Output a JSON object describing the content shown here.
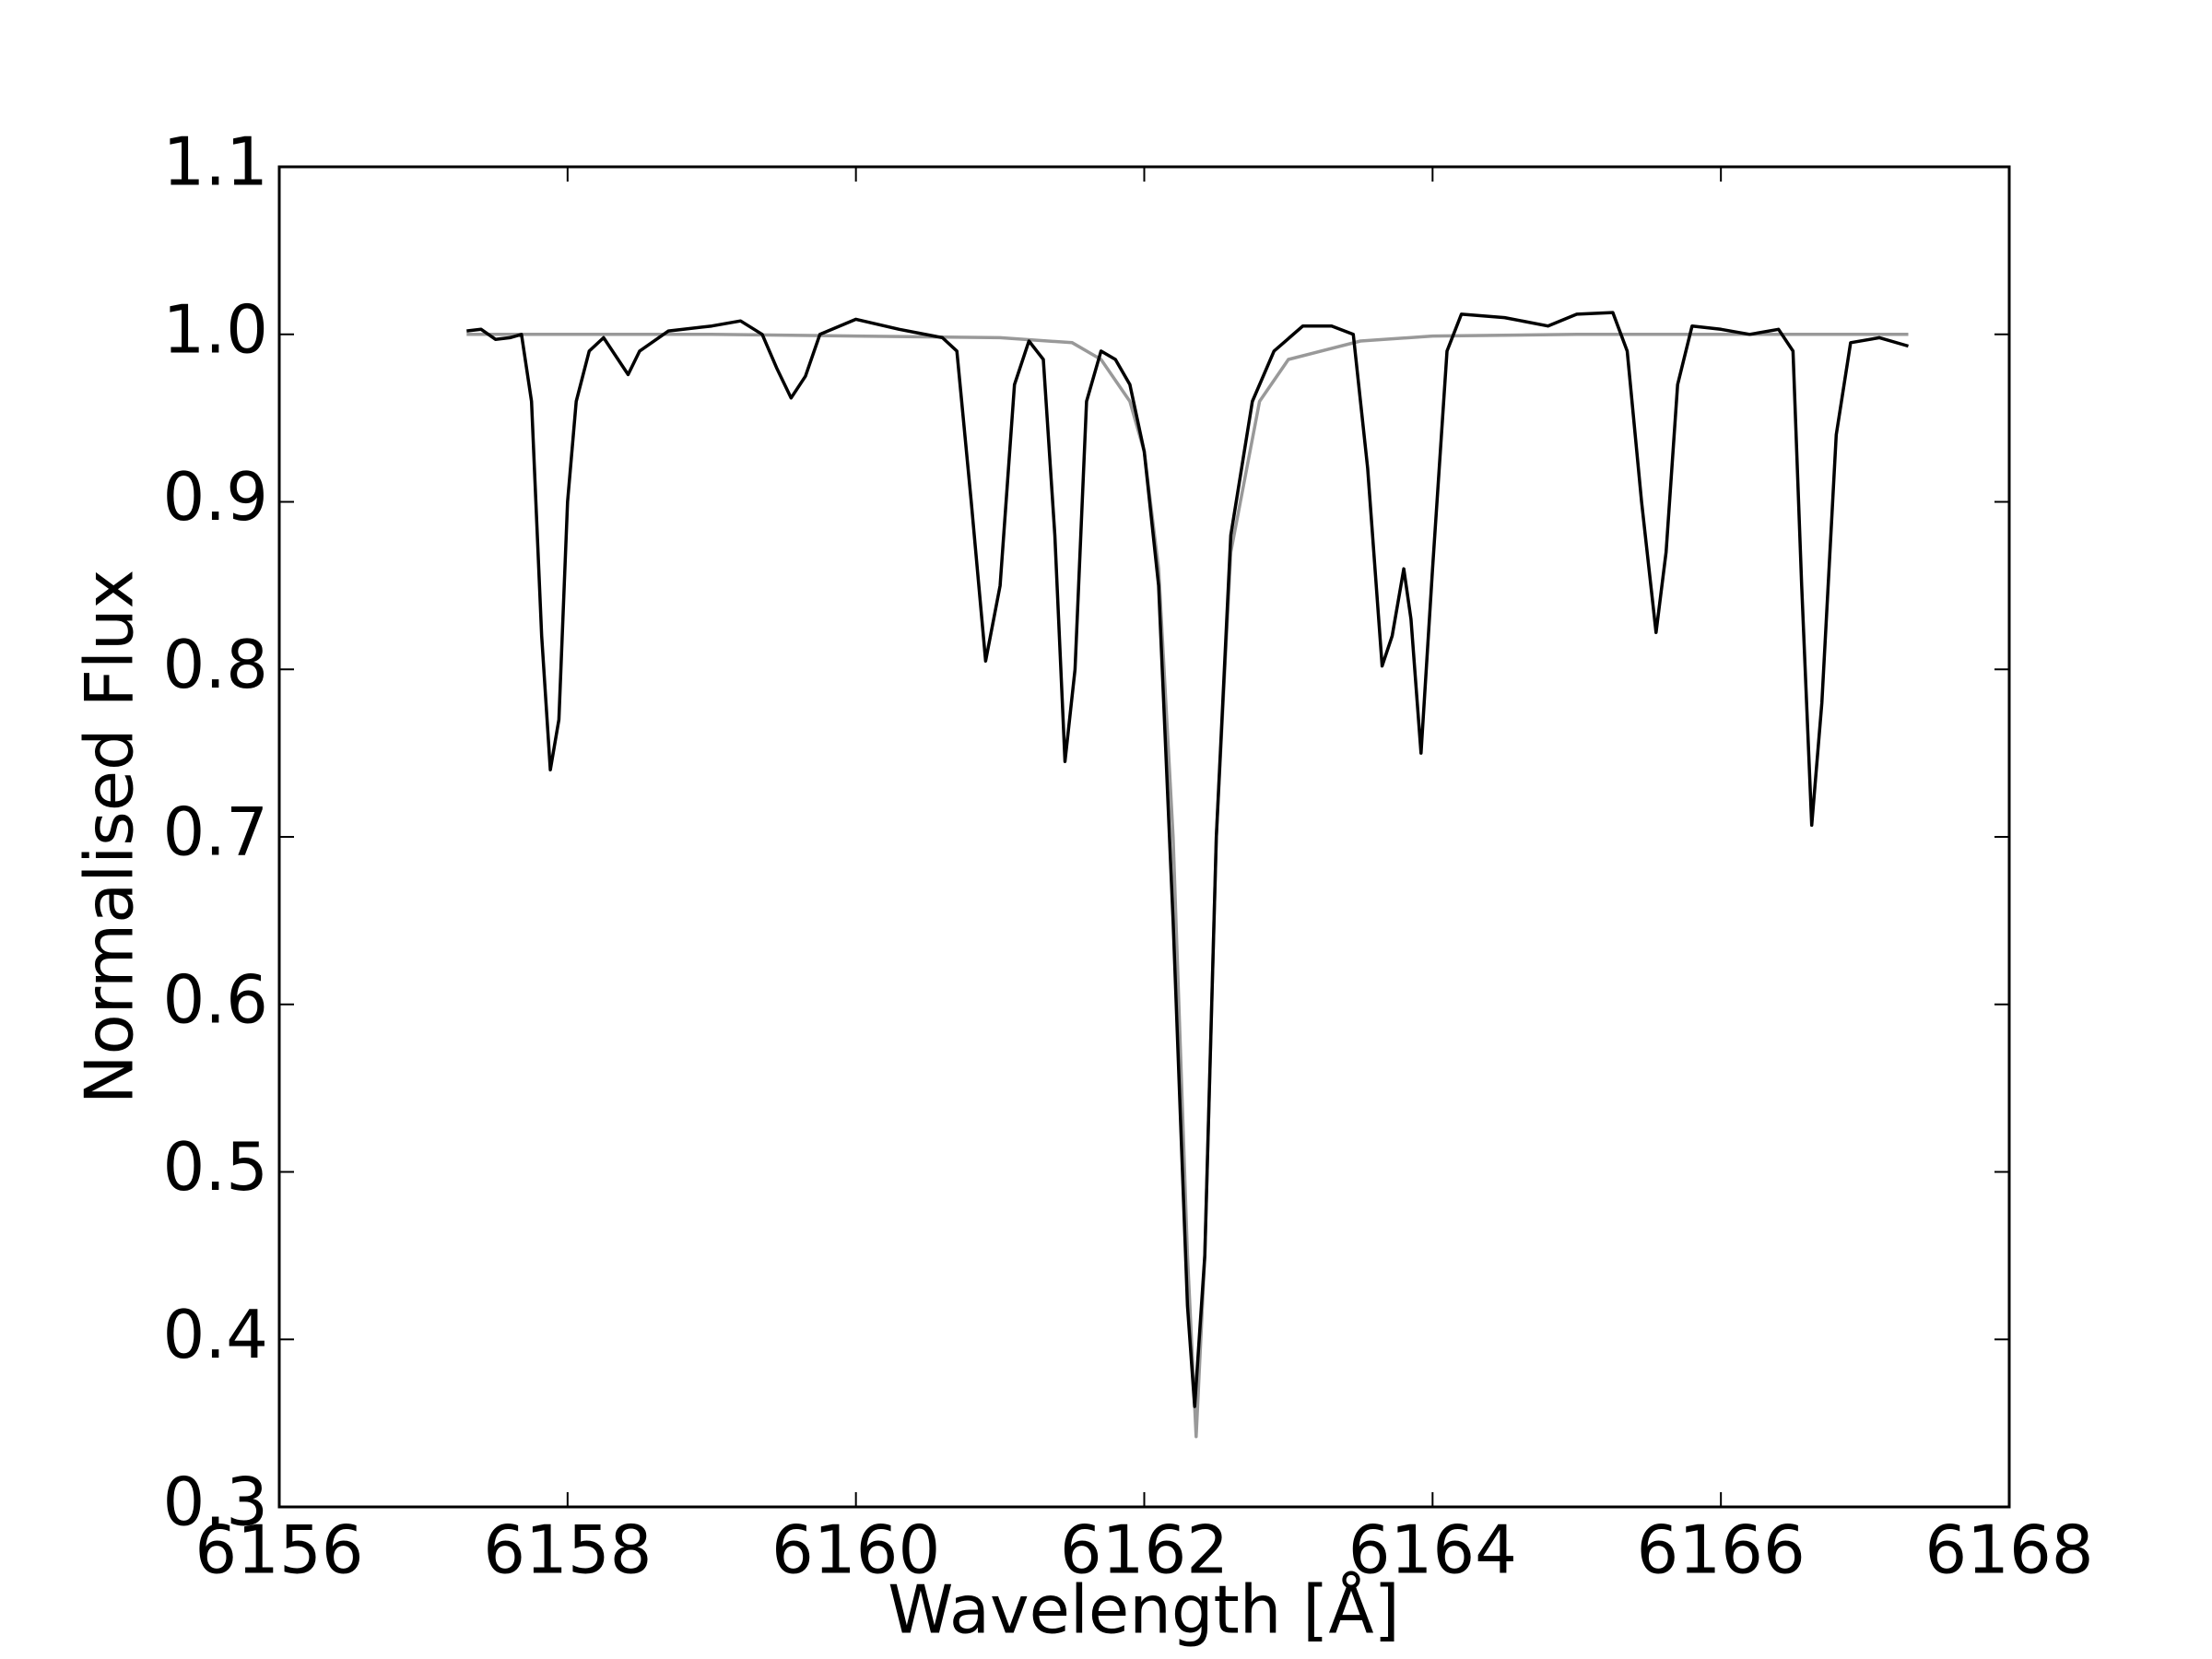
{
  "chart_data": {
    "type": "line",
    "xlabel": "Wavelength [Å]",
    "ylabel": "Normalised Flux",
    "xlim": [
      6156,
      6168
    ],
    "xticks": [
      6156,
      6158,
      6160,
      6162,
      6164,
      6166,
      6168
    ],
    "ylim": [
      0.3,
      1.1
    ],
    "yticks": [
      0.3,
      0.4,
      0.5,
      0.6,
      0.7,
      0.8,
      0.9,
      {
        "value": 1,
        "label": "1.0"
      },
      1.1
    ],
    "grid": false,
    "series": [
      {
        "color": "#999999",
        "x": [
          6157.3,
          6158,
          6159,
          6160,
          6161,
          6161.5,
          6161.7,
          6161.9,
          6162.0,
          6162.1,
          6162.2,
          6162.3,
          6162.36,
          6162.42,
          6162.5,
          6162.6,
          6162.8,
          6163.0,
          6163.5,
          6164,
          6165,
          6166,
          6167.3
        ],
        "values": [
          1.0,
          1.0,
          1.0,
          0.999,
          0.998,
          0.995,
          0.985,
          0.96,
          0.93,
          0.86,
          0.7,
          0.45,
          0.342,
          0.45,
          0.7,
          0.87,
          0.96,
          0.985,
          0.996,
          0.999,
          1.0,
          1.0,
          1.0
        ]
      },
      {
        "color": "#000000",
        "x": [
          6157.3,
          6157.4,
          6157.5,
          6157.6,
          6157.68,
          6157.75,
          6157.82,
          6157.88,
          6157.94,
          6158.0,
          6158.06,
          6158.15,
          6158.25,
          6158.35,
          6158.42,
          6158.5,
          6158.7,
          6159.0,
          6159.2,
          6159.35,
          6159.45,
          6159.55,
          6159.65,
          6159.75,
          6160.0,
          6160.3,
          6160.6,
          6160.7,
          6160.8,
          6160.9,
          6161.0,
          6161.1,
          6161.2,
          6161.3,
          6161.38,
          6161.45,
          6161.52,
          6161.6,
          6161.7,
          6161.8,
          6161.9,
          6162.0,
          6162.1,
          6162.2,
          6162.3,
          6162.35,
          6162.42,
          6162.5,
          6162.6,
          6162.75,
          6162.9,
          6163.1,
          6163.3,
          6163.45,
          6163.55,
          6163.65,
          6163.72,
          6163.8,
          6163.85,
          6163.92,
          6164.0,
          6164.1,
          6164.2,
          6164.5,
          6164.8,
          6165.0,
          6165.25,
          6165.35,
          6165.45,
          6165.55,
          6165.62,
          6165.7,
          6165.8,
          6166.0,
          6166.2,
          6166.4,
          6166.5,
          6166.56,
          6166.63,
          6166.7,
          6166.8,
          6166.9,
          6167.1,
          6167.3
        ],
        "values": [
          1.002,
          1.003,
          0.997,
          0.998,
          1.0,
          0.96,
          0.82,
          0.74,
          0.77,
          0.9,
          0.96,
          0.99,
          0.998,
          0.985,
          0.976,
          0.99,
          1.002,
          1.005,
          1.008,
          1.0,
          0.98,
          0.962,
          0.975,
          1.0,
          1.009,
          1.003,
          0.998,
          0.99,
          0.9,
          0.805,
          0.85,
          0.97,
          0.996,
          0.985,
          0.88,
          0.745,
          0.8,
          0.96,
          0.99,
          0.985,
          0.97,
          0.93,
          0.85,
          0.65,
          0.42,
          0.36,
          0.45,
          0.7,
          0.88,
          0.96,
          0.99,
          1.005,
          1.005,
          1.0,
          0.92,
          0.802,
          0.82,
          0.86,
          0.83,
          0.75,
          0.86,
          0.99,
          1.012,
          1.01,
          1.005,
          1.012,
          1.013,
          0.99,
          0.9,
          0.822,
          0.87,
          0.97,
          1.005,
          1.003,
          1.0,
          1.003,
          0.99,
          0.85,
          0.707,
          0.78,
          0.94,
          0.995,
          0.998,
          0.993
        ]
      }
    ]
  }
}
